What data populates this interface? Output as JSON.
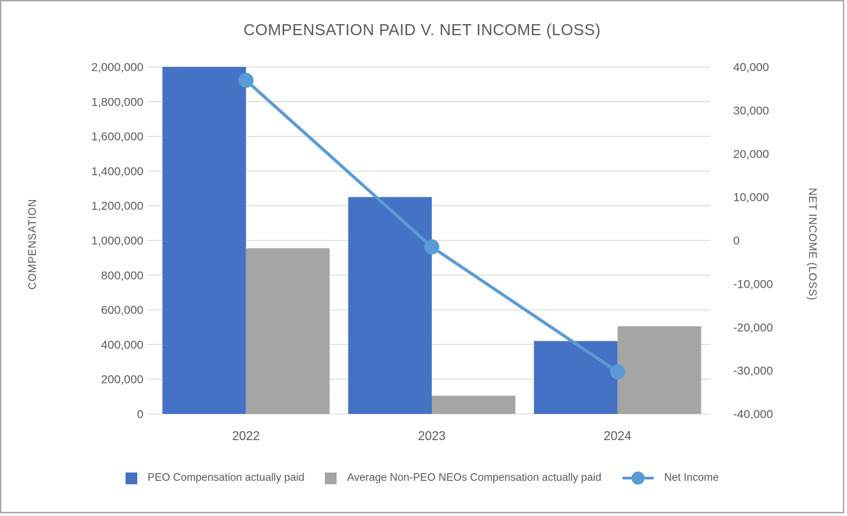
{
  "window": {
    "background": "#ffffff",
    "border_color": "#a9a9a9"
  },
  "chart_data": {
    "type": "combo",
    "title": "COMPENSATION PAID V. NET INCOME (LOSS)",
    "categories": [
      "2022",
      "2023",
      "2024"
    ],
    "series": [
      {
        "name": "PEO Compensation actually paid",
        "type": "bar",
        "axis": "left",
        "color": "#4472C4",
        "values": [
          2000000,
          1250000,
          420000
        ]
      },
      {
        "name": "Average Non-PEO NEOs Compensation actually paid",
        "type": "bar",
        "axis": "left",
        "color": "#A5A5A5",
        "values": [
          955000,
          105000,
          505000
        ]
      },
      {
        "name": "Net Income",
        "type": "line",
        "axis": "right",
        "color": "#5B9BD5",
        "marker": "circle",
        "values": [
          36900,
          -1500,
          -30300
        ]
      }
    ],
    "left_axis": {
      "title": "COMPENSATION",
      "min": 0,
      "max": 2000000,
      "step": 200000,
      "tick_labels": [
        "2,000,000",
        "1,800,000",
        "1,600,000",
        "1,400,000",
        "1,200,000",
        "1,000,000",
        "800,000",
        "600,000",
        "400,000",
        "200,000",
        "0"
      ]
    },
    "right_axis": {
      "title": "NET INCOME (LOSS)",
      "min": -40000,
      "max": 40000,
      "step": 10000,
      "tick_labels": [
        "40,000",
        "30,000",
        "20,000",
        "10,000",
        "0",
        "-10,000",
        "-20,000",
        "-30,000",
        "-40,000"
      ]
    },
    "grid": true,
    "gridline_color": "#D9D9D9",
    "text_color": "#595959",
    "legend_position": "bottom"
  }
}
